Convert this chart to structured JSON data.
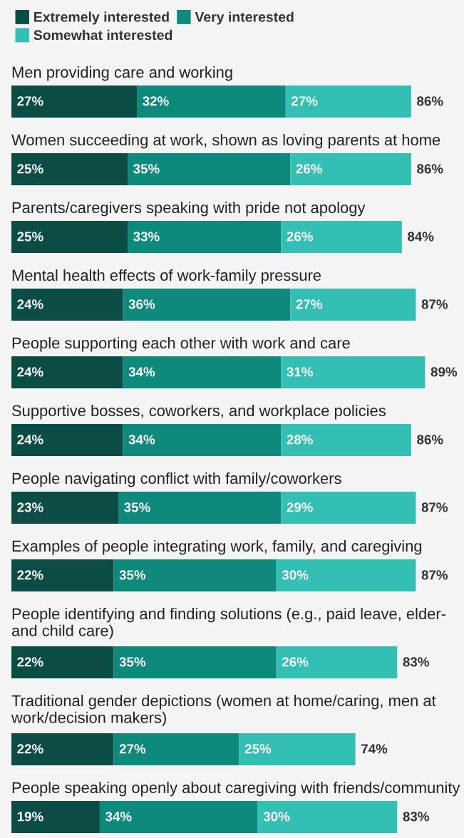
{
  "chart_data": {
    "type": "bar",
    "orientation": "horizontal",
    "stacked": true,
    "legend": "top left",
    "categories": [
      "Men providing care and working",
      "Women succeeding at work, shown as loving parents at home",
      "Parents/caregivers speaking with pride not apology",
      "Mental health effects of work-family pressure",
      "People supporting each other with work and care",
      "Supportive bosses, coworkers, and workplace policies",
      "People navigating conflict with family/coworkers",
      "Examples of people integrating work, family, and caregiving",
      "People identifying and finding solutions (e.g., paid leave, elder- and child care)",
      "Traditional gender depictions (women at home/caring, men at work/decision makers)",
      "People speaking openly about caregiving with friends/community"
    ],
    "series": [
      {
        "name": "Extremely interested",
        "color": "#0b4d45",
        "values": [
          27,
          25,
          25,
          24,
          24,
          24,
          23,
          22,
          22,
          22,
          19
        ],
        "value_labels": [
          "27%",
          "25%",
          "25%",
          "24%",
          "24%",
          "24%",
          "23%",
          "22%",
          "22%",
          "22%",
          "19%"
        ]
      },
      {
        "name": "Very interested",
        "color": "#0e8a7d",
        "values": [
          32,
          35,
          33,
          36,
          34,
          34,
          35,
          35,
          35,
          27,
          34
        ],
        "value_labels": [
          "32%",
          "35%",
          "33%",
          "36%",
          "34%",
          "34%",
          "35%",
          "35%",
          "35%",
          "27%",
          "34%"
        ]
      },
      {
        "name": "Somewhat interested",
        "color": "#33bfb4",
        "values": [
          27,
          26,
          26,
          27,
          31,
          28,
          29,
          30,
          26,
          25,
          30
        ],
        "value_labels": [
          "27%",
          "26%",
          "26%",
          "27%",
          "31%",
          "28%",
          "29%",
          "30%",
          "26%",
          "25%",
          "30%"
        ]
      }
    ],
    "totals": [
      "86%",
      "86%",
      "84%",
      "87%",
      "89%",
      "86%",
      "87%",
      "87%",
      "83%",
      "74%",
      "83%"
    ]
  }
}
